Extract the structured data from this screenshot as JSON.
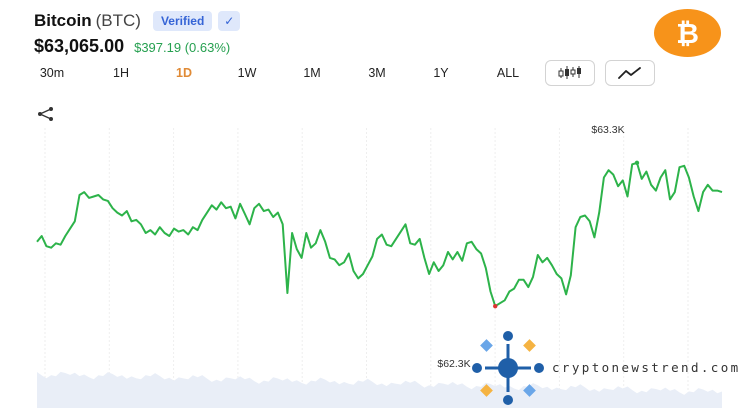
{
  "coin": {
    "name": "Bitcoin",
    "ticker": "(BTC)",
    "verified": "Verified",
    "check": "✓",
    "logo_symbol": "₿"
  },
  "price": {
    "value": "$63,065.00",
    "change": "$397.19 (0.63%)"
  },
  "ranges": [
    {
      "label": "30m",
      "active": false
    },
    {
      "label": "1H",
      "active": false
    },
    {
      "label": "1D",
      "active": true
    },
    {
      "label": "1W",
      "active": false
    },
    {
      "label": "1M",
      "active": false
    },
    {
      "label": "3M",
      "active": false
    },
    {
      "label": "1Y",
      "active": false
    },
    {
      "label": "ALL",
      "active": false
    }
  ],
  "chart_types": [
    "candlestick-icon",
    "line-chart-icon"
  ],
  "colors": {
    "line": "#2db34a",
    "change": "#26a050",
    "active_range": "#e08a35",
    "brand": "#f7931a",
    "watermark_blue": "#1f5fa8",
    "watermark_orange": "#f5b342",
    "watermark_light": "#6aa6e8"
  },
  "chart_data": {
    "type": "line",
    "high_label": "$63.3K",
    "low_label": "$62.3K",
    "ylim": [
      62.0,
      63.45
    ],
    "y": [
      62.74,
      62.78,
      62.71,
      62.7,
      62.73,
      62.72,
      62.78,
      62.83,
      62.88,
      63.06,
      63.08,
      63.04,
      63.05,
      63.06,
      63.03,
      63.02,
      62.97,
      62.94,
      62.92,
      62.95,
      62.88,
      62.89,
      62.86,
      62.8,
      62.82,
      62.79,
      62.84,
      62.8,
      62.78,
      62.83,
      62.81,
      62.82,
      62.79,
      62.84,
      62.82,
      62.89,
      62.94,
      62.99,
      62.96,
      63.01,
      62.97,
      62.98,
      62.9,
      63.0,
      62.93,
      62.86,
      62.97,
      63.0,
      62.95,
      62.96,
      62.91,
      62.94,
      62.86,
      62.39,
      62.8,
      62.69,
      62.63,
      62.8,
      62.7,
      62.73,
      62.82,
      62.74,
      62.63,
      62.62,
      62.58,
      62.6,
      62.66,
      62.54,
      62.49,
      62.52,
      62.58,
      62.64,
      62.76,
      62.79,
      62.72,
      62.71,
      62.76,
      62.81,
      62.86,
      62.73,
      62.72,
      62.76,
      62.63,
      62.52,
      62.6,
      62.54,
      62.58,
      62.67,
      62.62,
      62.67,
      62.61,
      62.73,
      62.74,
      62.69,
      62.66,
      62.56,
      62.4,
      62.3,
      62.32,
      62.34,
      62.4,
      62.42,
      62.48,
      62.48,
      62.43,
      62.5,
      62.65,
      62.6,
      62.63,
      62.58,
      62.52,
      62.49,
      62.38,
      62.51,
      62.84,
      62.91,
      62.92,
      62.88,
      62.77,
      62.94,
      63.18,
      63.23,
      63.2,
      63.12,
      63.16,
      63.05,
      63.27,
      63.28,
      63.17,
      63.22,
      63.13,
      63.09,
      63.18,
      63.23,
      63.03,
      63.08,
      63.25,
      63.26,
      63.18,
      63.05,
      62.95,
      63.08,
      63.13,
      63.09,
      63.09,
      63.08
    ]
  },
  "watermark": {
    "text": "cryptonewstrend.com"
  }
}
